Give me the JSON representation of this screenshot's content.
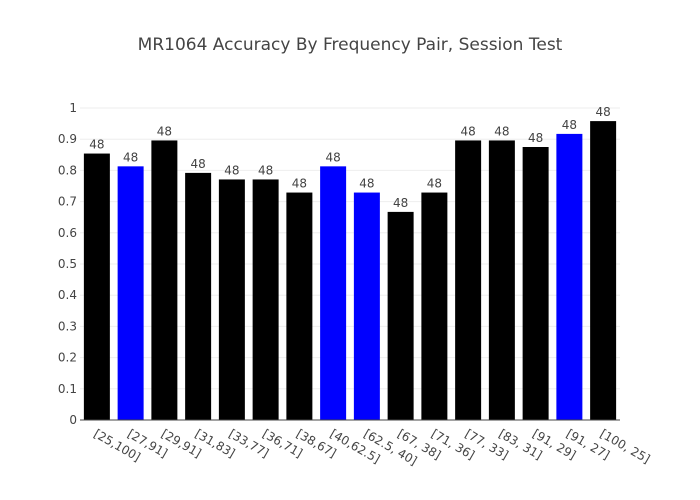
{
  "chart_data": {
    "type": "bar",
    "title": "MR1064 Accuracy By Frequency Pair, Session Test",
    "xlabel": "",
    "ylabel": "",
    "ylim": [
      0,
      1
    ],
    "yticks": [
      "0",
      "0.1",
      "0.2",
      "0.3",
      "0.4",
      "0.5",
      "0.6",
      "0.7",
      "0.8",
      "0.9",
      "1"
    ],
    "grid": true,
    "legend": "none",
    "categories": [
      "[25,100]",
      "[27,91]",
      "[29,91]",
      "[31,83]",
      "[33,77]",
      "[36,71]",
      "[38,67]",
      "[40,62.5]",
      "[62.5, 40]",
      "[67, 38]",
      "[71, 36]",
      "[77, 33]",
      "[83, 31]",
      "[91, 29]",
      "[91, 27]",
      "[100, 25]"
    ],
    "values": [
      0.854,
      0.813,
      0.896,
      0.792,
      0.771,
      0.771,
      0.729,
      0.813,
      0.729,
      0.667,
      0.729,
      0.896,
      0.896,
      0.875,
      0.917,
      0.958
    ],
    "data_labels": [
      "48",
      "48",
      "48",
      "48",
      "48",
      "48",
      "48",
      "48",
      "48",
      "48",
      "48",
      "48",
      "48",
      "48",
      "48",
      "48"
    ],
    "bar_colors": [
      "#000000",
      "#0000ff",
      "#000000",
      "#000000",
      "#000000",
      "#000000",
      "#000000",
      "#0000ff",
      "#0000ff",
      "#000000",
      "#000000",
      "#000000",
      "#000000",
      "#000000",
      "#0000ff",
      "#000000"
    ]
  },
  "colors": {
    "grid": "#eeeeee",
    "axis": "#444444",
    "text": "#444444",
    "background": "#ffffff"
  }
}
